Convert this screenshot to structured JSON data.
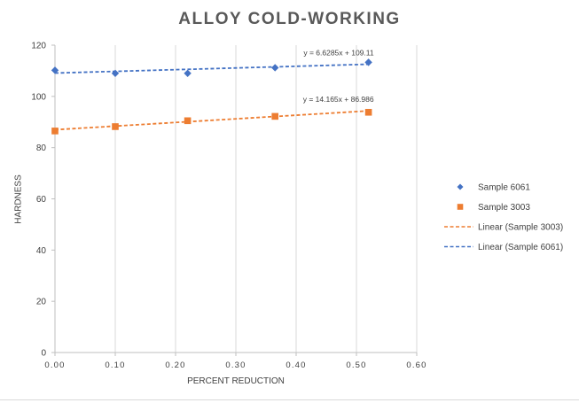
{
  "chart_data": {
    "type": "scatter",
    "title": "ALLOY COLD-WORKING",
    "xlabel": "PERCENT REDUCTION",
    "ylabel": "HARDNESS",
    "xlim": [
      0,
      0.6
    ],
    "ylim": [
      0,
      120
    ],
    "x_ticks": [
      0,
      0.1,
      0.2,
      0.3,
      0.4,
      0.5,
      0.6
    ],
    "x_tick_labels": [
      "0.00",
      "0.10",
      "0.20",
      "0.30",
      "0.40",
      "0.50",
      "0.60"
    ],
    "y_ticks": [
      0,
      20,
      40,
      60,
      80,
      100,
      120
    ],
    "y_tick_labels": [
      "0",
      "20",
      "40",
      "60",
      "80",
      "100",
      "120"
    ],
    "grid": "vertical",
    "legend_position": "right",
    "series": [
      {
        "name": "Sample 6061",
        "marker": "diamond",
        "color": "#4472C4",
        "x": [
          0.0,
          0.1,
          0.22,
          0.365,
          0.52
        ],
        "y": [
          110.2,
          109.0,
          109.0,
          111.2,
          113.3
        ]
      },
      {
        "name": "Sample 3003",
        "marker": "square",
        "color": "#ED7D31",
        "x": [
          0.0,
          0.1,
          0.22,
          0.365,
          0.52
        ],
        "y": [
          86.5,
          88.2,
          90.5,
          92.2,
          93.8
        ]
      }
    ],
    "trendlines": [
      {
        "name": "Linear (Sample 3003)",
        "color": "#ED7D31",
        "slope": 14.165,
        "intercept": 86.986,
        "x_range": [
          0,
          0.52
        ],
        "equation": "y = 14.165x + 86.986"
      },
      {
        "name": "Linear (Sample 6061)",
        "color": "#4472C4",
        "slope": 6.6285,
        "intercept": 109.11,
        "x_range": [
          0,
          0.52
        ],
        "equation": "y = 6.6285x + 109.11"
      }
    ]
  }
}
